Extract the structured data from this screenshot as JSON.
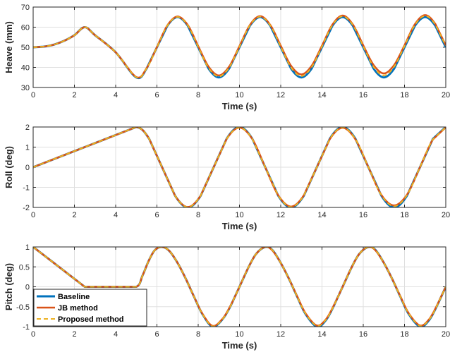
{
  "legend_entries": [
    "Baseline",
    "JB method",
    "Proposed method"
  ],
  "colors": {
    "baseline": "#0072BD",
    "jb": "#D95319",
    "proposed": "#EDB120",
    "grid": "#dfdfdf",
    "axis": "#262626"
  },
  "chart_data": [
    {
      "type": "line",
      "xlabel": "Time (s)",
      "ylabel": "Heave (mm)",
      "xlim": [
        0,
        20
      ],
      "ylim": [
        30,
        70
      ],
      "xticks": [
        "0",
        "2",
        "4",
        "6",
        "8",
        "10",
        "12",
        "14",
        "16",
        "18",
        "20"
      ],
      "yticks": [
        "30",
        "40",
        "50",
        "60",
        "70"
      ],
      "grid": true,
      "series": [
        {
          "name": "Baseline",
          "style": "solid",
          "x": [
            0,
            0.5,
            1,
            1.5,
            2,
            2.5,
            3,
            4,
            5,
            5.5,
            6,
            6.5,
            7,
            7.5,
            8,
            8.5,
            9,
            9.5,
            10,
            10.5,
            11,
            11.5,
            12,
            12.5,
            13,
            13.5,
            14,
            14.5,
            15,
            15.5,
            16,
            16.5,
            17,
            17.5,
            18,
            18.5,
            19,
            19.5,
            20
          ],
          "y": [
            50,
            50.3,
            51.3,
            53.2,
            56,
            60,
            56,
            47.5,
            35,
            39.4,
            50,
            60.6,
            65,
            60.6,
            50,
            39.4,
            35,
            39.4,
            50,
            60.6,
            65,
            60.6,
            50,
            39.4,
            35,
            39.4,
            50,
            60.6,
            65,
            60.6,
            50,
            39.4,
            35,
            39.4,
            50,
            60.6,
            65,
            60.6,
            50
          ]
        },
        {
          "name": "JB method",
          "style": "solid",
          "x": [
            0,
            0.5,
            1,
            1.5,
            2,
            2.5,
            3,
            4,
            5,
            5.5,
            6,
            6.5,
            7,
            7.5,
            8,
            8.5,
            9,
            9.5,
            10,
            10.5,
            11,
            11.5,
            12,
            12.5,
            13,
            13.5,
            14,
            14.5,
            15,
            15.5,
            16,
            16.5,
            17,
            17.5,
            18,
            18.5,
            19,
            19.5,
            20
          ],
          "y": [
            50,
            50.3,
            51.3,
            53.2,
            56,
            60,
            56,
            47.5,
            35.2,
            39.6,
            50.1,
            60.8,
            65.3,
            61,
            50.6,
            40.4,
            36,
            40.4,
            50.6,
            61,
            65.5,
            61,
            50.8,
            40.8,
            36.5,
            40.8,
            50.8,
            61.2,
            65.8,
            61.3,
            51,
            41.2,
            37,
            41.2,
            51,
            61.4,
            66,
            61.5,
            51
          ]
        },
        {
          "name": "Proposed method",
          "style": "dashed",
          "x": [
            0,
            0.5,
            1,
            1.5,
            2,
            2.5,
            3,
            4,
            5,
            5.5,
            6,
            6.5,
            7,
            7.5,
            8,
            8.5,
            9,
            9.5,
            10,
            10.5,
            11,
            11.5,
            12,
            12.5,
            13,
            13.5,
            14,
            14.5,
            15,
            15.5,
            16,
            16.5,
            17,
            17.5,
            18,
            18.5,
            19,
            19.5,
            20
          ],
          "y": [
            50,
            50.3,
            51.3,
            53.2,
            56,
            60,
            56,
            47.5,
            35.1,
            39.5,
            50,
            60.7,
            65.1,
            60.8,
            50.2,
            39.8,
            35.5,
            39.9,
            50.3,
            60.8,
            65.2,
            60.8,
            50.3,
            40,
            35.7,
            40.1,
            50.4,
            60.9,
            65.4,
            61,
            50.5,
            40.3,
            36,
            40.4,
            50.6,
            61.1,
            65.6,
            61.2,
            50.8
          ]
        }
      ]
    },
    {
      "type": "line",
      "xlabel": "Time (s)",
      "ylabel": "Roll (deg)",
      "xlim": [
        0,
        20
      ],
      "ylim": [
        -2,
        2
      ],
      "xticks": [
        "0",
        "2",
        "4",
        "6",
        "8",
        "10",
        "12",
        "14",
        "16",
        "18",
        "20"
      ],
      "yticks": [
        "-2",
        "-1",
        "0",
        "1",
        "2"
      ],
      "grid": true,
      "series": [
        {
          "name": "Baseline",
          "style": "solid",
          "x": [
            0,
            1,
            2,
            3,
            4,
            5,
            5.625,
            6.25,
            6.875,
            7.5,
            8.125,
            8.75,
            9.375,
            10,
            10.625,
            11.25,
            11.875,
            12.5,
            13.125,
            13.75,
            14.375,
            15,
            15.625,
            16.25,
            16.875,
            17.5,
            18.125,
            18.75,
            19.375,
            20
          ],
          "y": [
            0,
            0.4,
            0.8,
            1.2,
            1.6,
            2,
            1.41,
            0,
            -1.41,
            -2,
            -1.41,
            0,
            1.41,
            2,
            1.41,
            0,
            -1.41,
            -2,
            -1.41,
            0,
            1.41,
            2,
            1.41,
            0,
            -1.41,
            -2,
            -1.41,
            0,
            1.41,
            2
          ]
        },
        {
          "name": "JB method",
          "style": "solid",
          "x": [
            0,
            1,
            2,
            3,
            4,
            5,
            5.625,
            6.25,
            6.875,
            7.5,
            8.125,
            8.75,
            9.375,
            10,
            10.625,
            11.25,
            11.875,
            12.5,
            13.125,
            13.75,
            14.375,
            15,
            15.625,
            16.25,
            16.875,
            17.5,
            18.125,
            18.75,
            19.375,
            20
          ],
          "y": [
            0,
            0.4,
            0.8,
            1.2,
            1.6,
            2,
            1.41,
            0,
            -1.41,
            -1.98,
            -1.4,
            0,
            1.4,
            1.97,
            1.4,
            0,
            -1.39,
            -1.96,
            -1.39,
            0,
            1.39,
            1.96,
            1.38,
            0,
            -1.37,
            -1.9,
            -1.36,
            0,
            1.38,
            1.98
          ]
        },
        {
          "name": "Proposed method",
          "style": "dashed",
          "x": [
            0,
            1,
            2,
            3,
            4,
            5,
            5.625,
            6.25,
            6.875,
            7.5,
            8.125,
            8.75,
            9.375,
            10,
            10.625,
            11.25,
            11.875,
            12.5,
            13.125,
            13.75,
            14.375,
            15,
            15.625,
            16.25,
            16.875,
            17.5,
            18.125,
            18.75,
            19.375,
            20
          ],
          "y": [
            0,
            0.4,
            0.8,
            1.2,
            1.6,
            2,
            1.41,
            0,
            -1.41,
            -1.99,
            -1.4,
            0,
            1.4,
            1.98,
            1.4,
            0,
            -1.4,
            -1.98,
            -1.4,
            0,
            1.4,
            1.98,
            1.39,
            0,
            -1.38,
            -1.94,
            -1.38,
            0,
            1.39,
            1.99
          ]
        }
      ]
    },
    {
      "type": "line",
      "xlabel": "Time (s)",
      "ylabel": "Pitch (deg)",
      "xlim": [
        0,
        20
      ],
      "ylim": [
        -1,
        1
      ],
      "xticks": [
        "0",
        "2",
        "4",
        "6",
        "8",
        "10",
        "12",
        "14",
        "16",
        "18",
        "20"
      ],
      "yticks": [
        "-1",
        "-0.5",
        "0",
        "0.5",
        "1"
      ],
      "grid": true,
      "legend": "bottom-left",
      "series": [
        {
          "name": "Baseline",
          "style": "solid",
          "x": [
            0,
            1,
            2,
            2.5,
            3,
            4,
            5,
            5.3,
            5.6,
            5.9,
            6.25,
            6.6,
            7,
            7.4,
            7.8,
            8.2,
            8.7,
            9.2,
            9.6,
            10,
            10.4,
            10.8,
            11.25,
            11.6,
            12,
            12.4,
            12.8,
            13.2,
            13.75,
            14.2,
            14.6,
            15,
            15.4,
            15.8,
            16.25,
            16.6,
            17,
            17.4,
            17.8,
            18.2,
            18.75,
            19.2,
            19.6,
            20
          ],
          "y": [
            1,
            0.6,
            0.2,
            0,
            0,
            0,
            0,
            0.28,
            0.65,
            0.92,
            1,
            0.9,
            0.6,
            0.2,
            -0.25,
            -0.68,
            -1,
            -0.8,
            -0.45,
            0,
            0.45,
            0.82,
            1,
            0.92,
            0.6,
            0.2,
            -0.25,
            -0.68,
            -1,
            -0.83,
            -0.45,
            0,
            0.45,
            0.82,
            1,
            0.92,
            0.6,
            0.2,
            -0.25,
            -0.68,
            -1,
            -0.83,
            -0.45,
            0
          ]
        },
        {
          "name": "JB method",
          "style": "solid",
          "x": [
            0,
            1,
            2,
            2.5,
            3,
            4,
            5,
            5.3,
            5.6,
            5.9,
            6.25,
            6.6,
            7,
            7.4,
            7.8,
            8.2,
            8.7,
            9.2,
            9.6,
            10,
            10.4,
            10.8,
            11.25,
            11.6,
            12,
            12.4,
            12.8,
            13.2,
            13.75,
            14.2,
            14.6,
            15,
            15.4,
            15.8,
            16.25,
            16.6,
            17,
            17.4,
            17.8,
            18.2,
            18.75,
            19.2,
            19.6,
            20
          ],
          "y": [
            1,
            0.6,
            0.2,
            0,
            0,
            0,
            0,
            0.28,
            0.65,
            0.92,
            1,
            0.9,
            0.6,
            0.2,
            -0.25,
            -0.67,
            -0.98,
            -0.79,
            -0.44,
            0,
            0.45,
            0.82,
            1,
            0.91,
            0.6,
            0.2,
            -0.24,
            -0.66,
            -0.97,
            -0.81,
            -0.44,
            0,
            0.45,
            0.82,
            1,
            0.91,
            0.6,
            0.2,
            -0.24,
            -0.66,
            -0.97,
            -0.81,
            -0.44,
            0
          ]
        },
        {
          "name": "Proposed method",
          "style": "dashed",
          "x": [
            0,
            1,
            2,
            2.5,
            3,
            4,
            5,
            5.3,
            5.6,
            5.9,
            6.25,
            6.6,
            7,
            7.4,
            7.8,
            8.2,
            8.7,
            9.2,
            9.6,
            10,
            10.4,
            10.8,
            11.25,
            11.6,
            12,
            12.4,
            12.8,
            13.2,
            13.75,
            14.2,
            14.6,
            15,
            15.4,
            15.8,
            16.25,
            16.6,
            17,
            17.4,
            17.8,
            18.2,
            18.75,
            19.2,
            19.6,
            20
          ],
          "y": [
            1,
            0.6,
            0.2,
            0,
            0,
            0,
            0,
            0.28,
            0.65,
            0.92,
            1,
            0.9,
            0.6,
            0.2,
            -0.25,
            -0.68,
            -0.99,
            -0.8,
            -0.45,
            0,
            0.45,
            0.82,
            1,
            0.92,
            0.6,
            0.2,
            -0.25,
            -0.67,
            -0.98,
            -0.82,
            -0.45,
            0,
            0.45,
            0.82,
            1,
            0.92,
            0.6,
            0.2,
            -0.25,
            -0.67,
            -0.98,
            -0.82,
            -0.45,
            0
          ]
        }
      ]
    }
  ]
}
